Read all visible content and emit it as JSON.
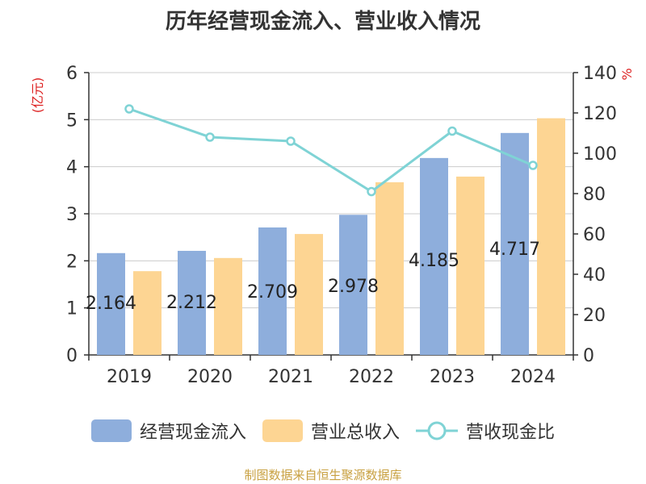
{
  "chart_data": {
    "type": "bar",
    "title": "历年经营现金流入、营业收入情况",
    "categories": [
      "2019",
      "2020",
      "2021",
      "2022",
      "2023",
      "2024"
    ],
    "series": [
      {
        "name": "经营现金流入",
        "type": "bar",
        "axis": "left",
        "color": "#8eaedc",
        "values": [
          2.164,
          2.212,
          2.709,
          2.978,
          4.185,
          4.717
        ],
        "labels": [
          "2.164",
          "2.212",
          "2.709",
          "2.978",
          "4.185",
          "4.717"
        ]
      },
      {
        "name": "营业总收入",
        "type": "bar",
        "axis": "left",
        "color": "#fdd593",
        "values": [
          1.78,
          2.06,
          2.57,
          3.67,
          3.79,
          5.03
        ]
      },
      {
        "name": "营收现金比",
        "type": "line",
        "axis": "right",
        "color": "#7fd3d5",
        "values": [
          122,
          108,
          106,
          81,
          111,
          94
        ]
      }
    ],
    "ylabel": "(亿元)",
    "ylabel_right": "%",
    "ylim": [
      0,
      6
    ],
    "yticks": [
      "0",
      "1",
      "2",
      "3",
      "4",
      "5",
      "6"
    ],
    "ylim_right": [
      0,
      140
    ],
    "yticks_right": [
      "0",
      "20",
      "40",
      "60",
      "80",
      "100",
      "120",
      "140"
    ],
    "grid": true,
    "legend_position": "bottom"
  },
  "footer": {
    "source": "制图数据来自恒生聚源数据库"
  }
}
